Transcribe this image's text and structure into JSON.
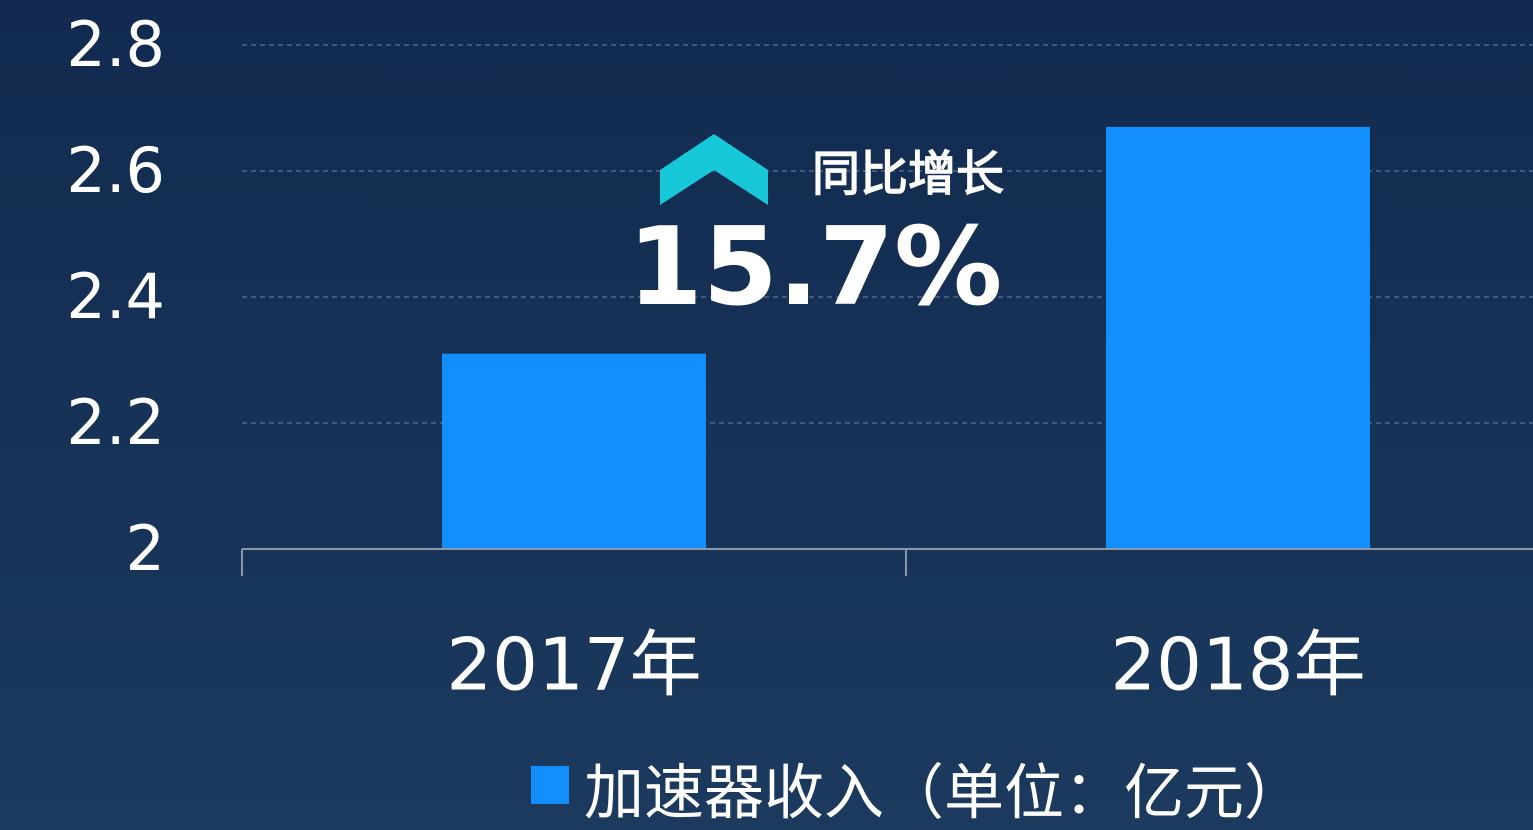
{
  "chart_data": {
    "type": "bar",
    "categories": [
      "2017年",
      "2018年"
    ],
    "series": [
      {
        "name": "加速器收入（单位：亿元）",
        "color": "#128ffd",
        "values": [
          2.31,
          2.67
        ]
      }
    ],
    "ylim": [
      2,
      2.8
    ],
    "yticks": [
      2,
      2.2,
      2.4,
      2.6,
      2.8
    ],
    "grid": true,
    "annotations": [
      "同比增长",
      "15.7%"
    ]
  }
}
